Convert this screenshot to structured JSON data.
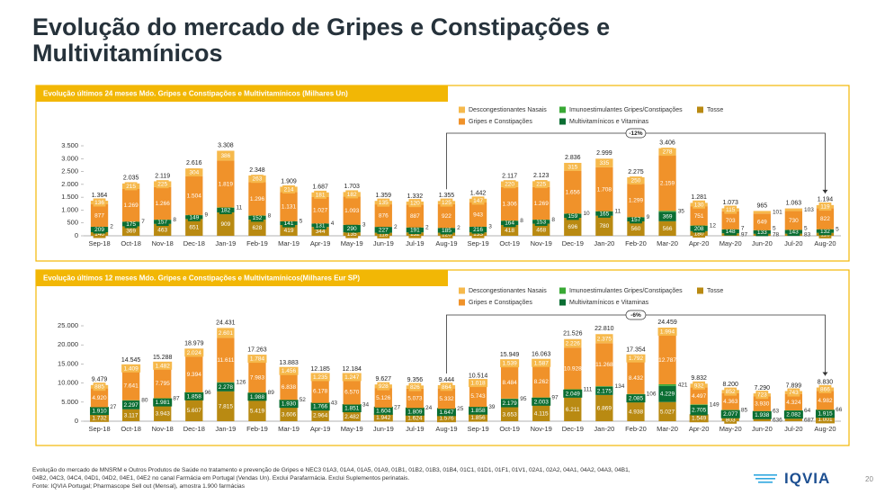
{
  "title": "Evolução do mercado de Gripes e Constipações e Multivitamínicos",
  "footnote": [
    "Evolução do mercado de MNSRM e Outros Produtos de Saúde no tratamento e prevenção de Gripes e NEC3 01A3, 01A4, 01A5, 01A9, 01B1, 01B2, 01B3, 01B4, 01C1, 01D1, 01F1, 01V1, 02A1, 02A2, 04A1, 04A2, 04A3, 04B1,",
    "04B2, 04C3, 04C4, 04D1, 04D2, 04E1, 04E2 no canal Farmácia em Portugal (Vendas Un). Exclui Parafarmácia. Exclui Suplementos perinatais.",
    "Fonte: IQVIA Portugal; Pharmascope Sell out (Mensal), amostra 1.900 farmácias"
  ],
  "logo": "IQVIA",
  "page_number": "20",
  "chart_data": [
    {
      "type": "bar",
      "stacked": true,
      "title": "Evolução últimos 24 meses Mdo. Gripes e Constipações e Multivitamínicos (Milhares Un)",
      "categories": [
        "Sep-18",
        "Oct-18",
        "Nov-18",
        "Dec-18",
        "Jan-19",
        "Feb-19",
        "Mar-19",
        "Apr-19",
        "May-19",
        "Jun-19",
        "Jul-19",
        "Aug-19",
        "Sep-19",
        "Oct-19",
        "Nov-19",
        "Dec-19",
        "Jan-20",
        "Feb-20",
        "Mar-20",
        "Apr-20",
        "May-20",
        "Jun-20",
        "Jul-20",
        "Aug-20"
      ],
      "series": [
        {
          "name": "Tosse",
          "color": "#b98a12",
          "values": [
            140,
            369,
            463,
            651,
            909,
            628,
            419,
            344,
            135,
            118,
            132,
            120,
            133,
            418,
            468,
            696,
            780,
            560,
            566,
            180,
            97,
            78,
            83,
            116
          ]
        },
        {
          "name": "Multivitamínicos e Vitaminas",
          "color": "#0b6e33",
          "values": [
            209,
            175,
            157,
            149,
            182,
            152,
            141,
            131,
            290,
            227,
            191,
            185,
            216,
            164,
            153,
            159,
            165,
            157,
            369,
            208,
            148,
            133,
            143,
            132
          ]
        },
        {
          "name": "Imunoestimulantes Gripes/Constipações",
          "color": "#39a935",
          "values": [
            2,
            7,
            8,
            9,
            11,
            8,
            5,
            4,
            3,
            2,
            2,
            2,
            3,
            8,
            8,
            10,
            11,
            9,
            35,
            12,
            7,
            5,
            5,
            5
          ]
        },
        {
          "name": "Gripes e Constipações",
          "color": "#f0922a",
          "values": [
            877,
            1269,
            1266,
            1504,
            1819,
            1296,
            1131,
            1027,
            1093,
            876,
            887,
            922,
            943,
            1306,
            1269,
            1656,
            1708,
            1299,
            2159,
            751,
            703,
            649,
            730,
            822
          ],
          "value_labels": [
            "877",
            "1.269",
            "1.266",
            "1.504",
            "1.819",
            "1.296",
            "1.131",
            "1.027",
            "1.093",
            "876",
            "887",
            "922",
            "943",
            "1.306",
            "1.269",
            "1.656",
            "1.708",
            "1.299",
            "2.159",
            "751",
            "703",
            "649",
            "730",
            "822"
          ]
        },
        {
          "name": "Descongestionantes Nasais",
          "color": "#f6b94c",
          "values": [
            136,
            215,
            225,
            304,
            386,
            263,
            214,
            181,
            182,
            135,
            120,
            125,
            147,
            220,
            225,
            315,
            335,
            250,
            278,
            130,
            115,
            101,
            103,
            119
          ]
        }
      ],
      "totals": {
        "values": [
          1364,
          2035,
          2119,
          2616,
          3308,
          2348,
          1909,
          1687,
          1703,
          1359,
          1332,
          1355,
          1442,
          2117,
          2123,
          2836,
          2999,
          2275,
          3406,
          1281,
          1073,
          965,
          1063,
          1194
        ],
        "value_labels": [
          "1.364",
          "2.035",
          "2.119",
          "2.616",
          "3.308",
          "2.348",
          "1.909",
          "1.687",
          "1.703",
          "1.359",
          "1.332",
          "1.355",
          "1.442",
          "2.117",
          "2.123",
          "2.836",
          "2.999",
          "2.275",
          "3.406",
          "1.281",
          "1.073",
          "965",
          "1.063",
          "1.194"
        ]
      },
      "ylim": [
        0,
        3500
      ],
      "yticks": [
        0,
        {
          "value": 500,
          "label": "500"
        },
        {
          "value": 1000,
          "label": "1.000"
        },
        {
          "value": 1500,
          "label": "1.500"
        },
        {
          "value": 2000,
          "label": "2.000"
        },
        {
          "value": 2500,
          "label": "2.500"
        },
        {
          "value": 3000,
          "label": "3.000"
        },
        {
          "value": 3500,
          "label": "3.500"
        }
      ],
      "grid": false,
      "annotation": {
        "text": "-12%"
      }
    },
    {
      "type": "bar",
      "stacked": true,
      "title": "Evolução últimos 12 meses Mdo. Gripes e Constipações e Multivitamínicos(Milhares Eur SP)",
      "categories": [
        "Sep-18",
        "Oct-18",
        "Nov-18",
        "Dec-18",
        "Jan-19",
        "Feb-19",
        "Mar-19",
        "Apr-19",
        "May-19",
        "Jun-19",
        "Jul-19",
        "Aug-19",
        "Sep-19",
        "Oct-19",
        "Nov-19",
        "Dec-19",
        "Jan-20",
        "Feb-20",
        "Mar-20",
        "Apr-20",
        "May-20",
        "Jun-20",
        "Jul-20",
        "Aug-20"
      ],
      "series": [
        {
          "name": "Tosse",
          "color": "#b98a12",
          "values": [
            1732,
            3117,
            3943,
            5607,
            7815,
            5419,
            3606,
            2964,
            2482,
            1942,
            1624,
            1576,
            1856,
            3653,
            4115,
            6211,
            6869,
            4938,
            5027,
            1549,
            803,
            636,
            687,
            1001
          ],
          "value_labels": [
            "1.732",
            "3.117",
            "3.943",
            "5.607",
            "7.815",
            "5.419",
            "3.606",
            "2.964",
            "2.482",
            "1.942",
            "1.624",
            "1.576",
            "1.856",
            "3.653",
            "4.115",
            "6.211",
            "6.869",
            "4.938",
            "5.027",
            "1.549",
            "803",
            "636",
            "687",
            "1.001"
          ]
        },
        {
          "name": "Multivitamínicos e Vitaminas",
          "color": "#0b6e33",
          "values": [
            1910,
            2297,
            1981,
            1858,
            2278,
            1988,
            1930,
            1766,
            1851,
            1604,
            1809,
            1647,
            1858,
            2179,
            2003,
            2049,
            2175,
            2085,
            4229,
            2705,
            2077,
            1938,
            2082,
            1915
          ],
          "value_labels": [
            "1.910",
            "2.297",
            "1.981",
            "1.858",
            "2.278",
            "1.988",
            "1.930",
            "1.766",
            "1.851",
            "1.604",
            "1.809",
            "1.647",
            "1.858",
            "2.179",
            "2.003",
            "2.049",
            "2.175",
            "2.085",
            "4.229",
            "2.705",
            "2.077",
            "1.938",
            "2.082",
            "1.915"
          ]
        },
        {
          "name": "Imunoestimulantes Gripes/Constipações",
          "color": "#39a935",
          "values": [
            27,
            80,
            87,
            96,
            126,
            89,
            52,
            43,
            34,
            27,
            24,
            25,
            39,
            95,
            97,
            111,
            134,
            106,
            421,
            149,
            85,
            63,
            64,
            66
          ]
        },
        {
          "name": "Gripes e Constipações",
          "color": "#f0922a",
          "values": [
            4920,
            7641,
            7795,
            9394,
            11611,
            7983,
            6838,
            6178,
            6570,
            5126,
            5073,
            5332,
            5743,
            8484,
            8262,
            10928,
            11268,
            8432,
            12787,
            4497,
            4363,
            3930,
            4324,
            4982
          ],
          "value_labels": [
            "4.920",
            "7.641",
            "7.795",
            "9.394",
            "11.611",
            "7.983",
            "6.838",
            "6.178",
            "6.570",
            "5.126",
            "5.073",
            "5.332",
            "5.743",
            "8.484",
            "8.262",
            "10.928",
            "11.268",
            "8.432",
            "12.787",
            "4.497",
            "4.363",
            "3.930",
            "4.324",
            "4.982"
          ]
        },
        {
          "name": "Descongestionantes Nasais",
          "color": "#f6b94c",
          "values": [
            885,
            1409,
            1482,
            2024,
            2601,
            1784,
            1456,
            1235,
            1247,
            928,
            826,
            864,
            1018,
            1539,
            1587,
            2226,
            2375,
            1792,
            1994,
            932,
            852,
            723,
            743,
            866
          ],
          "value_labels": [
            "885",
            "1.409",
            "1.482",
            "2.024",
            "2.601",
            "1.784",
            "1.456",
            "1.235",
            "1.247",
            "928",
            "826",
            "864",
            "1.018",
            "1.539",
            "1.587",
            "2.226",
            "2.375",
            "1.792",
            "1.994",
            "932",
            "852",
            "723",
            "743",
            "866"
          ]
        }
      ],
      "totals": {
        "values": [
          9479,
          14545,
          15288,
          18979,
          24431,
          17263,
          13883,
          12185,
          12184,
          9627,
          9356,
          9444,
          10514,
          15949,
          16063,
          21526,
          22810,
          17354,
          24459,
          9832,
          8200,
          7290,
          7899,
          8830
        ],
        "value_labels": [
          "9.479",
          "14.545",
          "15.288",
          "18.979",
          "24.431",
          "17.263",
          "13.883",
          "12.185",
          "12.184",
          "9.627",
          "9.356",
          "9.444",
          "10.514",
          "15.949",
          "16.063",
          "21.526",
          "22.810",
          "17.354",
          "24.459",
          "9.832",
          "8.200",
          "7.290",
          "7.899",
          "8.830"
        ]
      },
      "ylim": [
        0,
        25000
      ],
      "yticks": [
        0,
        {
          "value": 5000,
          "label": "5.000"
        },
        {
          "value": 10000,
          "label": "10.000"
        },
        {
          "value": 15000,
          "label": "15.000"
        },
        {
          "value": 20000,
          "label": "20.000"
        },
        {
          "value": 25000,
          "label": "25.000"
        }
      ],
      "grid": false,
      "annotation": {
        "text": "-6%"
      }
    }
  ]
}
